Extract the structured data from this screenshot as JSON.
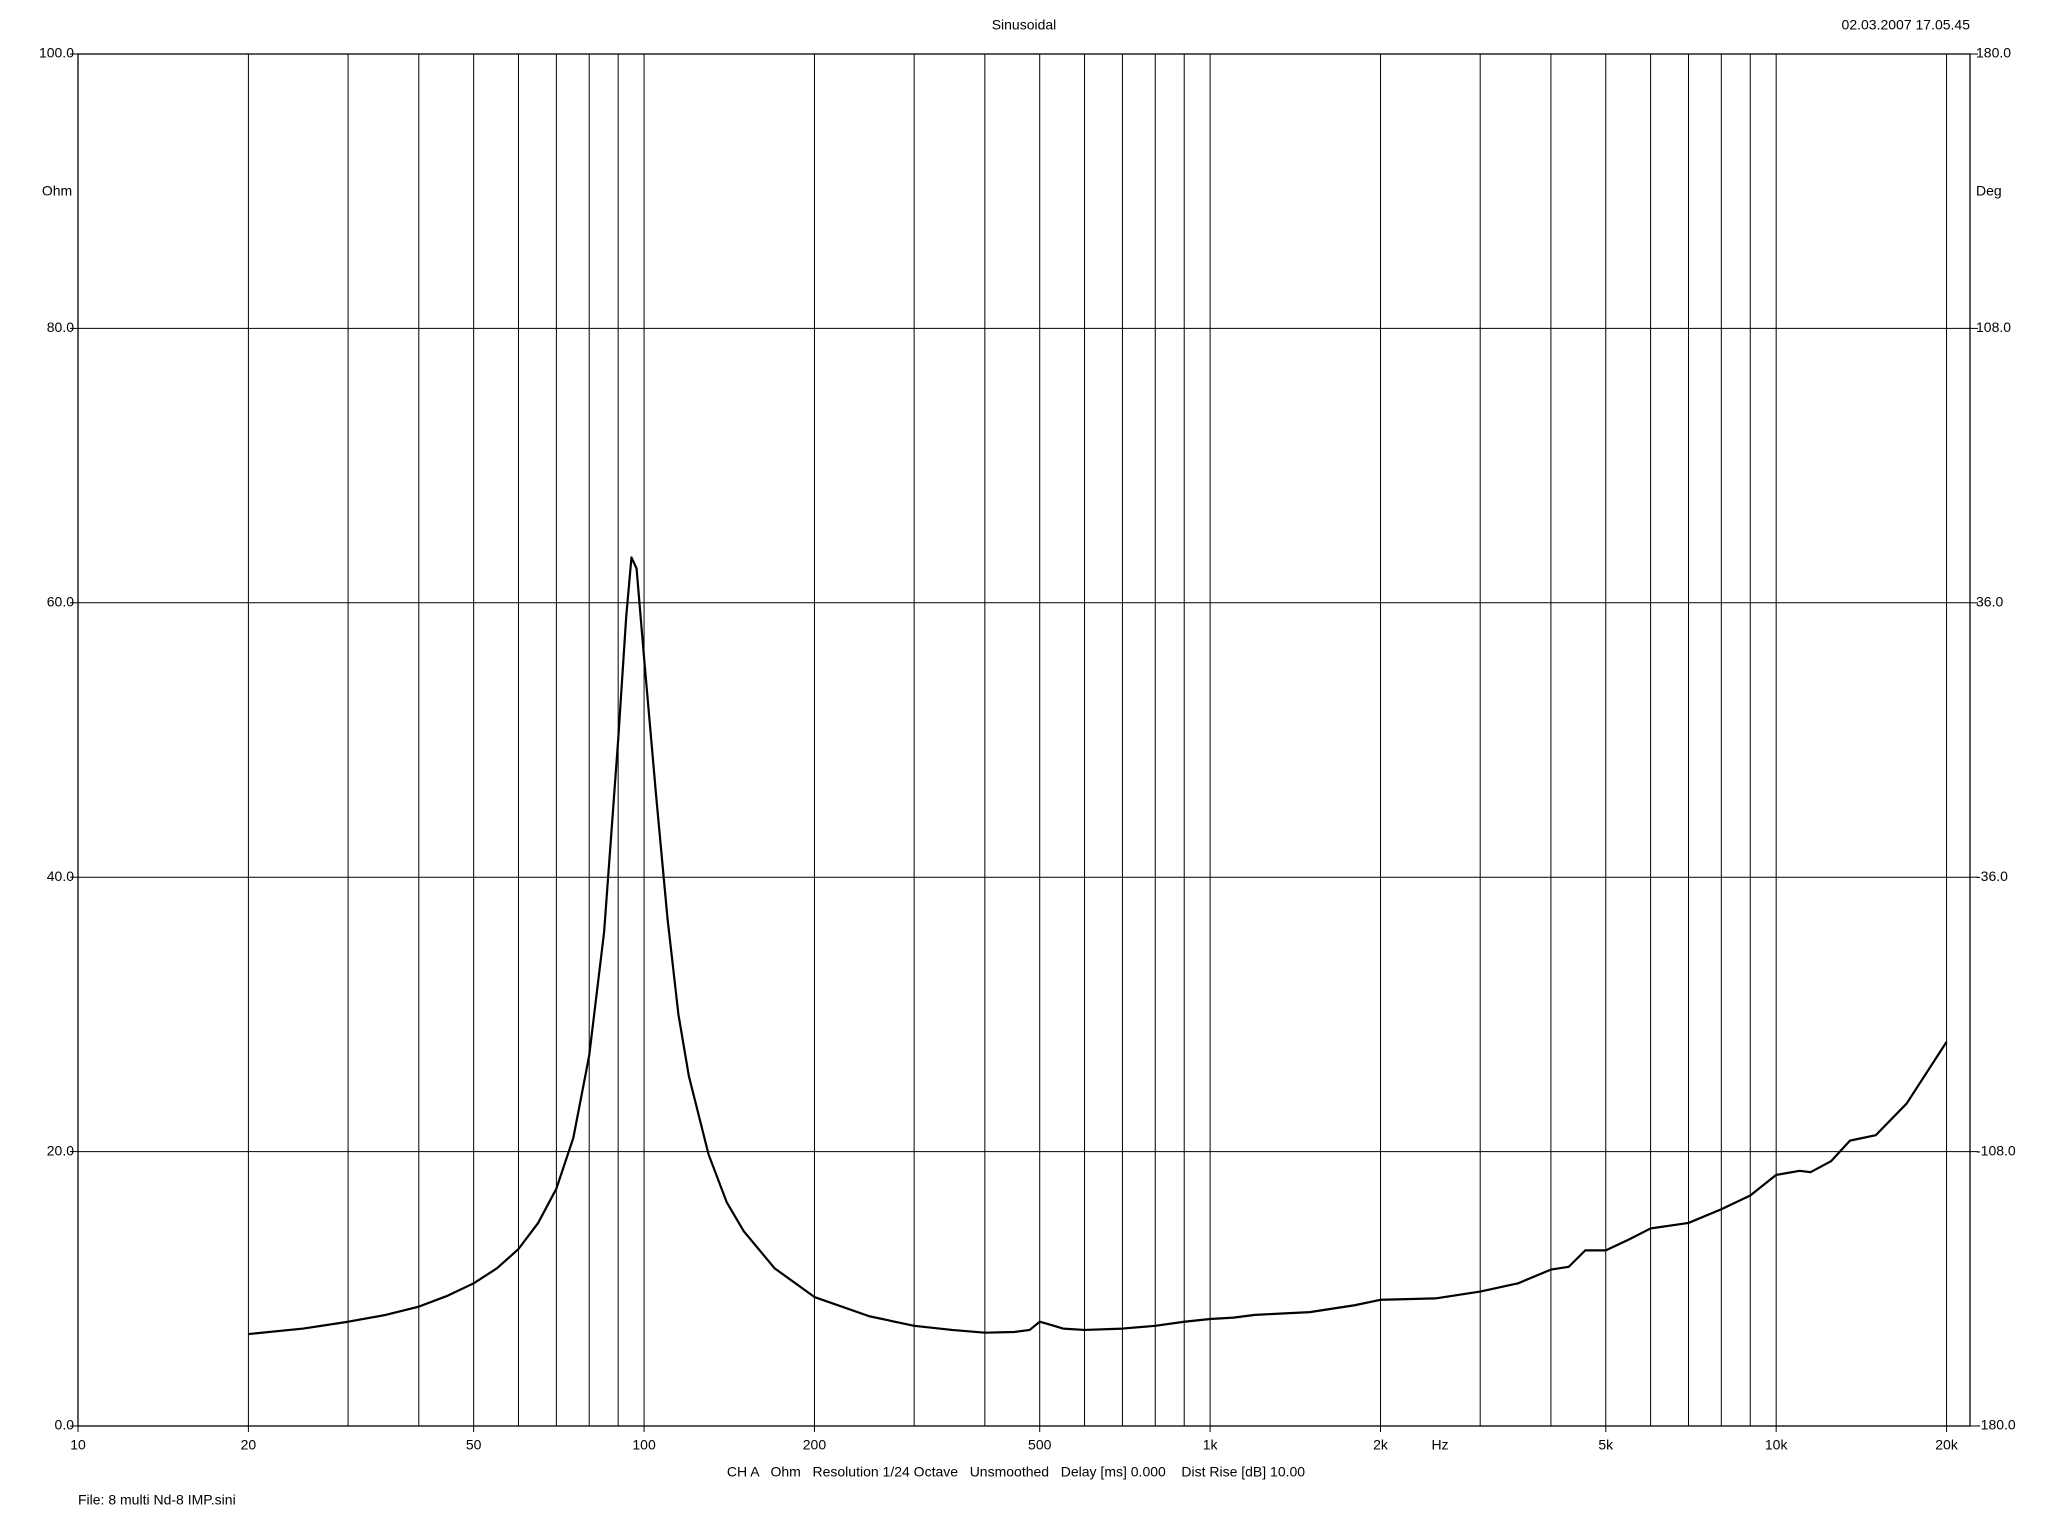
{
  "chart_data": {
    "type": "line",
    "title": "Sinusoidal",
    "timestamp": "02.03.2007 17.05.45",
    "y_unit": "Ohm",
    "y2_unit": "Deg",
    "x_unit": "Hz",
    "info": "CH A   Ohm   Resolution 1/24 Octave   Unsmoothed   Delay [ms] 0.000    Dist Rise [dB] 10.00",
    "file": "File: 8 multi Nd-8 IMP.sini",
    "log_x": true,
    "grid": true,
    "color": "#000000",
    "xlim": [
      10,
      22000
    ],
    "ylim": [
      0,
      100
    ],
    "y2lim": [
      -180,
      180
    ],
    "xticks": [
      10,
      20,
      50,
      100,
      200,
      500,
      {
        "value": 1000,
        "label": "1k"
      },
      {
        "value": 2000,
        "label": "2k"
      },
      {
        "value": 5000,
        "label": "5k"
      },
      {
        "value": 10000,
        "label": "10k"
      },
      {
        "value": 20000,
        "label": "20k"
      }
    ],
    "xgrid": [
      20,
      30,
      40,
      50,
      60,
      70,
      80,
      90,
      100,
      200,
      300,
      400,
      500,
      600,
      700,
      800,
      900,
      1000,
      2000,
      3000,
      4000,
      5000,
      6000,
      7000,
      8000,
      9000,
      10000,
      20000
    ],
    "yticks": [
      {
        "value": 0,
        "label": "0.0"
      },
      {
        "value": 20,
        "label": "20.0"
      },
      {
        "value": 40,
        "label": "40.0"
      },
      {
        "value": 60,
        "label": "60.0"
      },
      {
        "value": 80,
        "label": "80.0"
      },
      {
        "value": 100,
        "label": "100.0"
      }
    ],
    "y2ticks": [
      {
        "value": -180,
        "label": "-180.0"
      },
      {
        "value": -108,
        "label": "-108.0"
      },
      {
        "value": -36,
        "label": "-36.0"
      },
      {
        "value": 36,
        "label": "36.0"
      },
      {
        "value": 108,
        "label": "108.0"
      },
      {
        "value": 180,
        "label": "180.0"
      }
    ],
    "x": [
      20,
      25,
      30,
      35,
      40,
      45,
      50,
      55,
      60,
      65,
      70,
      75,
      80,
      85,
      90,
      93,
      95,
      97,
      100,
      105,
      110,
      115,
      120,
      130,
      140,
      150,
      170,
      200,
      250,
      300,
      350,
      400,
      450,
      480,
      500,
      520,
      550,
      600,
      700,
      800,
      900,
      1000,
      1100,
      1200,
      1500,
      1800,
      2000,
      2500,
      3000,
      3500,
      4000,
      4300,
      4600,
      5000,
      5500,
      6000,
      7000,
      8000,
      9000,
      10000,
      11000,
      11500,
      12500,
      13500,
      15000,
      17000,
      20000
    ],
    "values": [
      6.7,
      7.1,
      7.6,
      8.1,
      8.7,
      9.5,
      10.4,
      11.5,
      12.9,
      14.8,
      17.3,
      21,
      27,
      36,
      50,
      59,
      63.3,
      62.5,
      56,
      46,
      37,
      30,
      25.5,
      19.8,
      16.3,
      14.2,
      11.5,
      9.4,
      8.0,
      7.3,
      7.0,
      6.8,
      6.85,
      7.0,
      7.6,
      7.4,
      7.1,
      7.0,
      7.1,
      7.3,
      7.6,
      7.8,
      7.9,
      8.1,
      8.3,
      8.8,
      9.2,
      9.3,
      9.8,
      10.4,
      11.4,
      11.6,
      12.8,
      12.8,
      13.6,
      14.4,
      14.8,
      15.8,
      16.8,
      18.3,
      18.6,
      18.5,
      19.3,
      20.8,
      21.2,
      23.5,
      28
    ]
  }
}
